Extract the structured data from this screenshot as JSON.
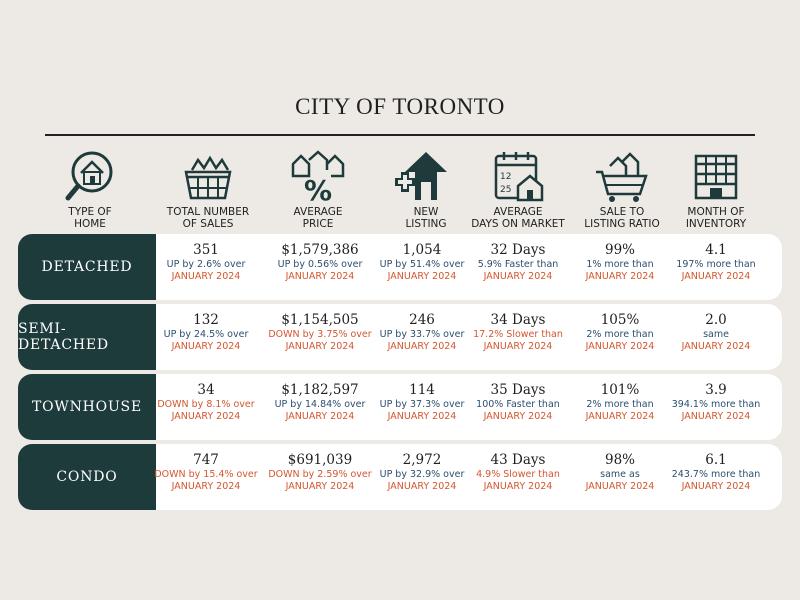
{
  "title": "CITY OF TORONTO",
  "headers": [
    {
      "line1": "TYPE OF",
      "line2": "HOME",
      "icon": "house-magnifier-icon"
    },
    {
      "line1": "TOTAL NUMBER",
      "line2": "OF SALES",
      "icon": "basket-of-houses-icon"
    },
    {
      "line1": "AVERAGE",
      "line2": "PRICE",
      "icon": "percent-houses-icon"
    },
    {
      "line1": "NEW",
      "line2": "LISTING",
      "icon": "new-listing-arrow-icon"
    },
    {
      "line1": "AVERAGE",
      "line2": "DAYS ON MARKET",
      "icon": "calendar-house-icon"
    },
    {
      "line1": "SALE TO",
      "line2": "LISTING RATIO",
      "icon": "cart-houses-icon"
    },
    {
      "line1": "MONTH OF",
      "line2": "INVENTORY",
      "icon": "building-inventory-icon"
    }
  ],
  "rows": [
    {
      "type": "DETACHED",
      "cells": [
        {
          "value": "351",
          "change": "UP by 2.6% over",
          "dir": "up",
          "period": "JANUARY 2024"
        },
        {
          "value": "$1,579,386",
          "change": "UP by 0.56% over",
          "dir": "up",
          "period": "JANUARY 2024"
        },
        {
          "value": "1,054",
          "change": "UP by 51.4% over",
          "dir": "up",
          "period": "JANUARY 2024"
        },
        {
          "value": "32 Days",
          "change": "5.9% Faster than",
          "dir": "up",
          "period": "JANUARY 2024"
        },
        {
          "value": "99%",
          "change": "1% more than",
          "dir": "up",
          "period": "JANUARY 2024"
        },
        {
          "value": "4.1",
          "change": "197% more than",
          "dir": "up",
          "period": "JANUARY 2024"
        }
      ]
    },
    {
      "type": "SEMI-DETACHED",
      "cells": [
        {
          "value": "132",
          "change": "UP by 24.5% over",
          "dir": "up",
          "period": "JANUARY 2024"
        },
        {
          "value": "$1,154,505",
          "change": "DOWN by 3.75% over",
          "dir": "down",
          "period": "JANUARY 2024"
        },
        {
          "value": "246",
          "change": "UP by 33.7% over",
          "dir": "up",
          "period": "JANUARY 2024"
        },
        {
          "value": "34 Days",
          "change": "17.2% Slower than",
          "dir": "down",
          "period": "JANUARY 2024"
        },
        {
          "value": "105%",
          "change": "2% more than",
          "dir": "up",
          "period": "JANUARY 2024"
        },
        {
          "value": "2.0",
          "change": "same",
          "dir": "up",
          "period": "JANUARY 2024"
        }
      ]
    },
    {
      "type": "TOWNHOUSE",
      "cells": [
        {
          "value": "34",
          "change": "DOWN by 8.1% over",
          "dir": "down",
          "period": "JANUARY 2024"
        },
        {
          "value": "$1,182,597",
          "change": "UP by 14.84% over",
          "dir": "up",
          "period": "JANUARY 2024"
        },
        {
          "value": "114",
          "change": "UP by 37.3% over",
          "dir": "up",
          "period": "JANUARY 2024"
        },
        {
          "value": "35 Days",
          "change": "100% Faster than",
          "dir": "up",
          "period": "JANUARY 2024"
        },
        {
          "value": "101%",
          "change": "2% more than",
          "dir": "up",
          "period": "JANUARY 2024"
        },
        {
          "value": "3.9",
          "change": "394.1% more than",
          "dir": "up",
          "period": "JANUARY 2024"
        }
      ]
    },
    {
      "type": "CONDO",
      "cells": [
        {
          "value": "747",
          "change": "DOWN by 15.4% over",
          "dir": "down",
          "period": "JANUARY 2024"
        },
        {
          "value": "$691,039",
          "change": "DOWN by 2.59% over",
          "dir": "down",
          "period": "JANUARY 2024"
        },
        {
          "value": "2,972",
          "change": "UP by 32.9% over",
          "dir": "up",
          "period": "JANUARY 2024"
        },
        {
          "value": "43 Days",
          "change": "4.9% Slower than",
          "dir": "down",
          "period": "JANUARY 2024"
        },
        {
          "value": "98%",
          "change": "same as",
          "dir": "up",
          "period": "JANUARY 2024"
        },
        {
          "value": "6.1",
          "change": "243.7% more than",
          "dir": "up",
          "period": "JANUARY 2024"
        }
      ]
    }
  ],
  "colors": {
    "label_bg": "#1d3b3a",
    "up": "#2d4e6e",
    "down": "#d4562e",
    "page_bg": "#edeae5"
  }
}
